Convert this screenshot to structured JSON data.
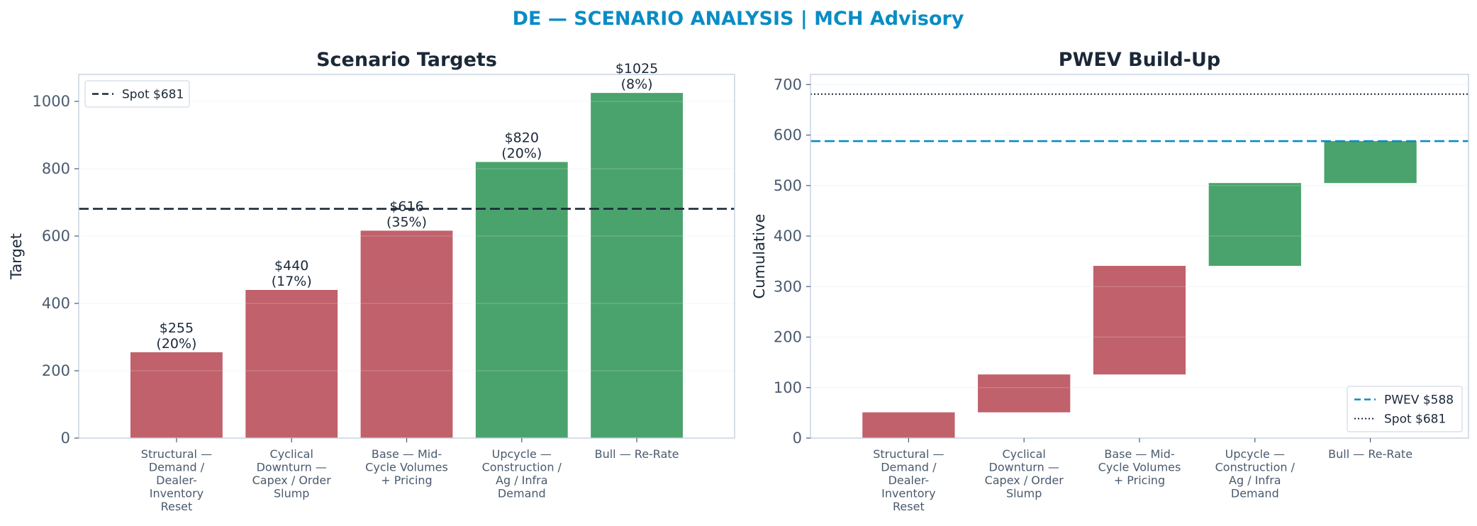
{
  "figure": {
    "suptitle": "DE — SCENARIO ANALYSIS | MCH Advisory",
    "title_color": "#0a8cc4"
  },
  "colors": {
    "bear": "#c0616b",
    "bull": "#4aa36c",
    "spot_line": "#1b2838",
    "pwev_line": "#0a8cc4",
    "axis": "#c8d3e0",
    "grid": "#eef2f7"
  },
  "chart_data": [
    {
      "type": "bar",
      "title": "Scenario Targets",
      "ylabel": "Target",
      "xlabel": "",
      "ylim": [
        0,
        1080
      ],
      "yticks": [
        0,
        200,
        400,
        600,
        800,
        1000
      ],
      "grid": true,
      "categories": [
        [
          "Structural —",
          "Demand /",
          "Dealer-",
          "Inventory",
          "Reset"
        ],
        [
          "Cyclical",
          "Downturn —",
          "Capex / Order",
          "Slump"
        ],
        [
          "Base — Mid-",
          "Cycle Volumes",
          "+ Pricing"
        ],
        [
          "Upcycle —",
          "Construction /",
          "Ag / Infra",
          "Demand"
        ],
        [
          "Bull — Re-Rate"
        ]
      ],
      "values": [
        255,
        440,
        616,
        820,
        1025
      ],
      "bar_colors": [
        "bear",
        "bear",
        "bear",
        "bull",
        "bull"
      ],
      "data_labels": [
        [
          "$255",
          "(20%)"
        ],
        [
          "$440",
          "(17%)"
        ],
        [
          "$616",
          "(35%)"
        ],
        [
          "$820",
          "(20%)"
        ],
        [
          "$1025",
          "(8%)"
        ]
      ],
      "reference_lines": [
        {
          "name": "Spot $681",
          "value": 681,
          "style": "dashed",
          "color": "spot_line"
        }
      ],
      "legend": {
        "placement": "upper-left",
        "entries": [
          "Spot $681"
        ]
      }
    },
    {
      "type": "bar",
      "subtype": "waterfall",
      "title": "PWEV Build-Up",
      "ylabel": "Cumulative",
      "xlabel": "",
      "ylim": [
        0,
        720
      ],
      "yticks": [
        0,
        100,
        200,
        300,
        400,
        500,
        600,
        700
      ],
      "grid": true,
      "categories": [
        [
          "Structural —",
          "Demand /",
          "Dealer-",
          "Inventory",
          "Reset"
        ],
        [
          "Cyclical",
          "Downturn —",
          "Capex / Order",
          "Slump"
        ],
        [
          "Base — Mid-",
          "Cycle Volumes",
          "+ Pricing"
        ],
        [
          "Upcycle —",
          "Construction /",
          "Ag / Infra",
          "Demand"
        ],
        [
          "Bull — Re-Rate"
        ]
      ],
      "segments": [
        {
          "start": 0,
          "end": 51,
          "color": "bear"
        },
        {
          "start": 51,
          "end": 126,
          "color": "bear"
        },
        {
          "start": 126,
          "end": 341,
          "color": "bear"
        },
        {
          "start": 341,
          "end": 505,
          "color": "bull"
        },
        {
          "start": 505,
          "end": 588,
          "color": "bull"
        }
      ],
      "reference_lines": [
        {
          "name": "PWEV $588",
          "value": 588,
          "style": "dashed",
          "color": "pwev_line"
        },
        {
          "name": "Spot $681",
          "value": 681,
          "style": "dotted",
          "color": "spot_line"
        }
      ],
      "legend": {
        "placement": "lower-right",
        "entries": [
          "PWEV $588",
          "Spot $681"
        ]
      }
    }
  ]
}
